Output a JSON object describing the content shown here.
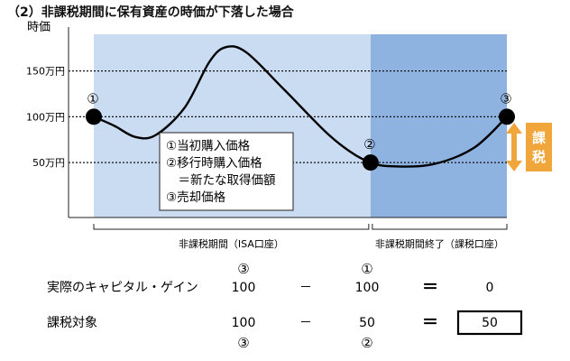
{
  "heading": "（2）非課税期間に保有資産の時価が下落した場合",
  "y_axis_label": "時価",
  "chart_data": {
    "type": "line",
    "y_ticks": [
      {
        "value": 50,
        "label": "50万円"
      },
      {
        "value": 100,
        "label": "100万円"
      },
      {
        "value": 150,
        "label": "150万円"
      }
    ],
    "ylim": [
      -10,
      190
    ],
    "xlim": [
      0,
      100
    ],
    "periods": [
      {
        "name": "非課税期間（ISA口座）",
        "from": 0,
        "to": 67,
        "color": "#c9dcf2"
      },
      {
        "name": "非課税期間終了（課税口座）",
        "from": 67,
        "to": 100,
        "color": "#8fb3e0"
      }
    ],
    "curve": [
      {
        "x": 0,
        "y": 100
      },
      {
        "x": 5,
        "y": 90
      },
      {
        "x": 10,
        "y": 78
      },
      {
        "x": 15,
        "y": 80
      },
      {
        "x": 22,
        "y": 110
      },
      {
        "x": 28,
        "y": 160
      },
      {
        "x": 32,
        "y": 176
      },
      {
        "x": 37,
        "y": 170
      },
      {
        "x": 46,
        "y": 130
      },
      {
        "x": 56,
        "y": 84
      },
      {
        "x": 62,
        "y": 62
      },
      {
        "x": 67,
        "y": 50
      },
      {
        "x": 72,
        "y": 46
      },
      {
        "x": 82,
        "y": 48
      },
      {
        "x": 92,
        "y": 66
      },
      {
        "x": 100,
        "y": 100
      }
    ],
    "markers": [
      {
        "id": "1",
        "label": "①",
        "x": 0,
        "y": 100
      },
      {
        "id": "2",
        "label": "②",
        "x": 67,
        "y": 50
      },
      {
        "id": "3",
        "label": "③",
        "x": 100,
        "y": 100
      }
    ],
    "legend_lines": [
      "①当初購入価格",
      "②移行時購入価格",
      "　＝新たな取得価額",
      "③売却価格"
    ],
    "tax_badge": {
      "label": "課税",
      "color": "#f0a63a"
    }
  },
  "table": {
    "row1": {
      "label": "実際のキャピタル・ゲイン",
      "ref_a": "③",
      "a": "100",
      "op": "－",
      "ref_b": "①",
      "b": "100",
      "eq": "＝",
      "result": "0"
    },
    "row2": {
      "label": "課税対象",
      "ref_a": "③",
      "a": "100",
      "op": "－",
      "ref_b": "②",
      "b": "50",
      "eq": "＝",
      "result": "50"
    }
  }
}
